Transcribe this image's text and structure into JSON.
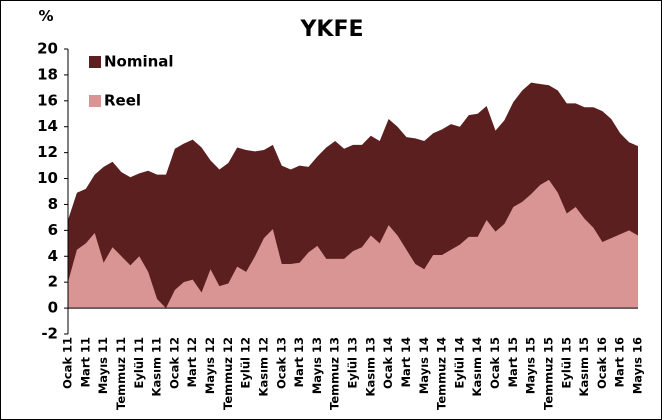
{
  "chart_data": {
    "type": "area",
    "title": "YKFE",
    "y_label": "%",
    "categories": [
      "Ocak 11",
      null,
      "Mart 11",
      null,
      "Mayıs 11",
      null,
      "Temmuz 11",
      null,
      "Eylül 11",
      null,
      "Kasım 11",
      null,
      "Ocak 12",
      null,
      "Mart 12",
      null,
      "Mayıs 12",
      null,
      "Temmuz 12",
      null,
      "Eylül 12",
      null,
      "Kasım 12",
      null,
      "Ocak 13",
      null,
      "Mart 13",
      null,
      "Mayıs 13",
      null,
      "Temmuz 13",
      null,
      "Eylül 13",
      null,
      "Kasım 13",
      null,
      "Ocak 14",
      null,
      "Mart 14",
      null,
      "Mayıs 14",
      null,
      "Temmuz 14",
      null,
      "Eylül 14",
      null,
      "Kasım 14",
      null,
      "Ocak 15",
      null,
      "Mart 15",
      null,
      "Mayıs 15",
      null,
      "Temmuz 15",
      null,
      "Eylül 15",
      null,
      "Kasım 15",
      null,
      "Ocak 16",
      null,
      "Mart 16",
      null,
      "Mayıs 16"
    ],
    "series": [
      {
        "name": "Nominal",
        "color": "#5c1f1f",
        "values": [
          6.8,
          8.9,
          9.2,
          10.3,
          10.9,
          11.3,
          10.5,
          10.1,
          10.4,
          10.6,
          10.3,
          10.3,
          12.3,
          12.7,
          13.0,
          12.4,
          11.4,
          10.7,
          11.2,
          12.4,
          12.2,
          12.1,
          12.2,
          12.6,
          11.0,
          10.7,
          11.0,
          10.9,
          11.7,
          12.4,
          12.9,
          12.3,
          12.6,
          12.6,
          13.3,
          12.9,
          14.6,
          14.0,
          13.2,
          13.1,
          12.9,
          13.5,
          13.8,
          14.2,
          14.0,
          14.9,
          15.0,
          15.6,
          13.7,
          14.5,
          15.9,
          16.8,
          17.4,
          17.3,
          17.2,
          16.8,
          15.8,
          15.8,
          15.5,
          15.5,
          15.2,
          14.6,
          13.5,
          12.8,
          12.5
        ]
      },
      {
        "name": "Reel",
        "color": "#d99594",
        "values": [
          2.0,
          4.5,
          5.0,
          5.8,
          3.5,
          4.7,
          4.0,
          3.3,
          4.0,
          2.8,
          0.7,
          0.0,
          1.4,
          2.0,
          2.2,
          1.2,
          3.0,
          1.7,
          1.9,
          3.2,
          2.8,
          4.0,
          5.4,
          6.1,
          3.4,
          3.4,
          3.5,
          4.3,
          4.8,
          3.8,
          3.8,
          3.8,
          4.4,
          4.7,
          5.6,
          5.0,
          6.4,
          5.6,
          4.5,
          3.4,
          3.0,
          4.1,
          4.1,
          4.5,
          4.9,
          5.5,
          5.5,
          6.8,
          5.9,
          6.5,
          7.8,
          8.2,
          8.8,
          9.5,
          9.9,
          8.9,
          7.3,
          7.8,
          6.9,
          6.2,
          5.1,
          5.4,
          5.7,
          6.0,
          5.6
        ]
      }
    ],
    "ylim": [
      -2,
      20
    ],
    "yticks": [
      -2,
      0,
      2,
      4,
      6,
      8,
      10,
      12,
      14,
      16,
      18,
      20
    ],
    "legend": "upper left"
  }
}
